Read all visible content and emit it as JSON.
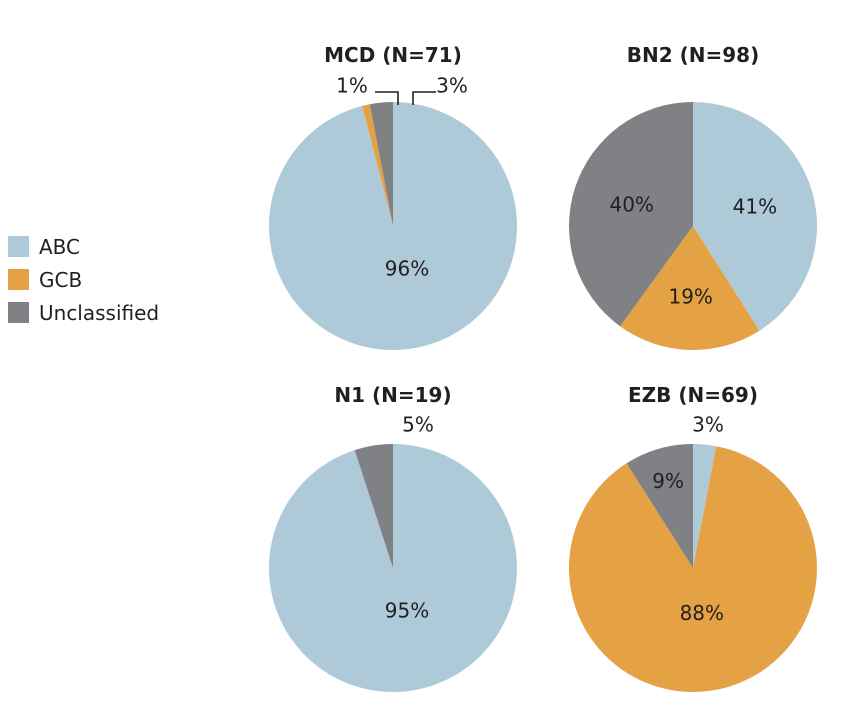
{
  "legend": {
    "items": [
      {
        "label": "ABC",
        "color": "#aec9d8"
      },
      {
        "label": "GCB",
        "color": "#e5a244"
      },
      {
        "label": "Unclassified",
        "color": "#808184"
      }
    ]
  },
  "chart_data": [
    {
      "type": "pie",
      "title": "MCD (N=71)",
      "categories": [
        "ABC",
        "GCB",
        "Unclassified"
      ],
      "values": [
        96,
        1,
        3
      ],
      "labels": [
        "96%",
        "1%",
        "3%"
      ],
      "colors": [
        "#aec9d8",
        "#e5a244",
        "#808184"
      ]
    },
    {
      "type": "pie",
      "title": "BN2 (N=98)",
      "categories": [
        "ABC",
        "GCB",
        "Unclassified"
      ],
      "values": [
        41,
        19,
        40
      ],
      "labels": [
        "41%",
        "19%",
        "40%"
      ],
      "colors": [
        "#aec9d8",
        "#e5a244",
        "#808184"
      ]
    },
    {
      "type": "pie",
      "title": "N1 (N=19)",
      "categories": [
        "ABC",
        "Unclassified"
      ],
      "values": [
        95,
        5
      ],
      "labels": [
        "95%",
        "5%"
      ],
      "colors": [
        "#aec9d8",
        "#808184"
      ]
    },
    {
      "type": "pie",
      "title": "EZB (N=69)",
      "categories": [
        "ABC",
        "GCB",
        "Unclassified"
      ],
      "values": [
        3,
        88,
        9
      ],
      "labels": [
        "3%",
        "88%",
        "9%"
      ],
      "colors": [
        "#aec9d8",
        "#e5a244",
        "#808184"
      ]
    }
  ]
}
